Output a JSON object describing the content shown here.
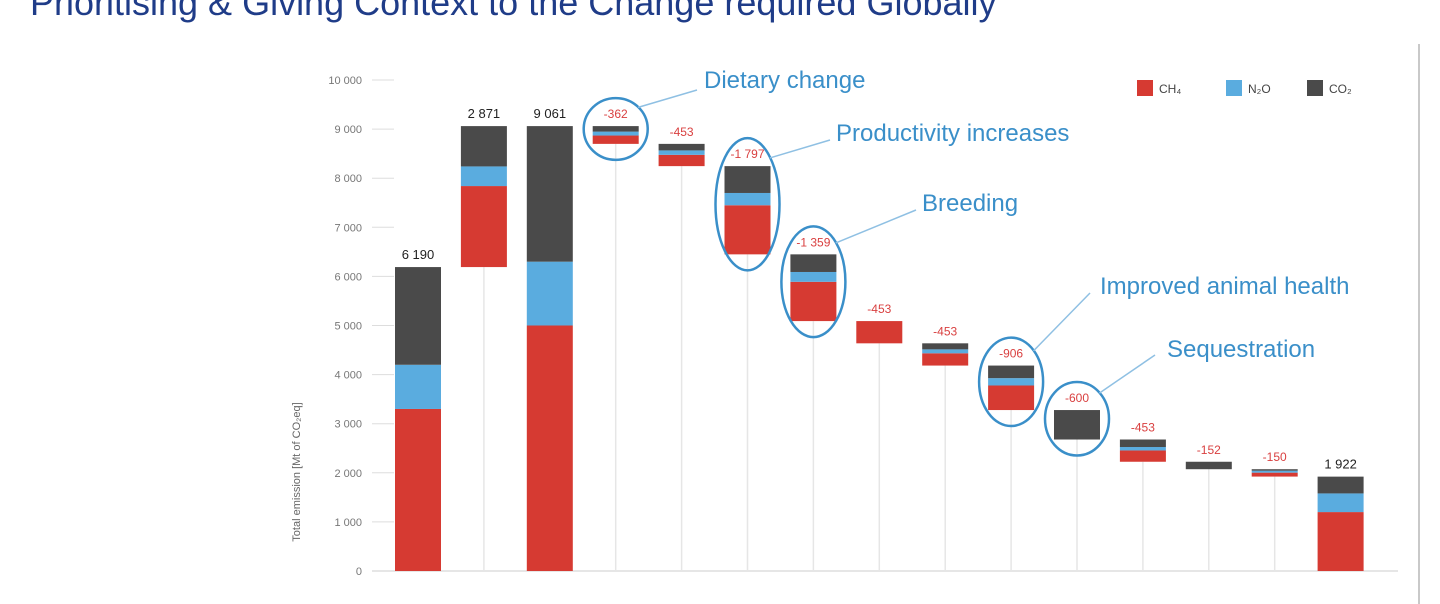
{
  "page": {
    "title": "Prioritising & Giving Context to the Change required Globally"
  },
  "chart_data": {
    "type": "bar",
    "subtype": "waterfall-stacked",
    "ylabel": "Total emission [Mt of CO₂eq]",
    "ylim": [
      0,
      10000
    ],
    "yticks": [
      0,
      1000,
      2000,
      3000,
      4000,
      5000,
      6000,
      7000,
      8000,
      9000,
      10000
    ],
    "ytick_labels": [
      "0",
      "1 000",
      "2 000",
      "3 000",
      "4 000",
      "5 000",
      "6 000",
      "7 000",
      "8 000",
      "9 000",
      "10 000"
    ],
    "grid": false,
    "legend_position": "top-right",
    "legend": [
      {
        "name": "CH₄",
        "color": "#d63a32"
      },
      {
        "name": "N₂O",
        "color": "#5aacdf"
      },
      {
        "name": "CO₂",
        "color": "#4a4a4a"
      }
    ],
    "bars": [
      {
        "kind": "total",
        "label": "6 190",
        "bottom": 0,
        "segments": [
          3300,
          900,
          1990
        ]
      },
      {
        "kind": "increase",
        "label": "2 871",
        "bottom": 6190,
        "segments": [
          1650,
          400,
          821
        ]
      },
      {
        "kind": "total",
        "label": "9 061",
        "bottom": 0,
        "segments": [
          5000,
          1300,
          2761
        ]
      },
      {
        "kind": "decrease",
        "label": "-362",
        "bottom": 8699,
        "segments": [
          170,
          80,
          112
        ]
      },
      {
        "kind": "decrease",
        "label": "-453",
        "bottom": 8246,
        "segments": [
          230,
          90,
          133
        ]
      },
      {
        "kind": "decrease",
        "label": "-1 797",
        "bottom": 6449,
        "segments": [
          1000,
          250,
          547
        ]
      },
      {
        "kind": "decrease",
        "label": "-1 359",
        "bottom": 5090,
        "segments": [
          800,
          200,
          359
        ]
      },
      {
        "kind": "decrease",
        "label": "-453",
        "bottom": 4637,
        "segments": [
          453,
          0,
          0
        ]
      },
      {
        "kind": "decrease",
        "label": "-453",
        "bottom": 4184,
        "segments": [
          250,
          80,
          123
        ]
      },
      {
        "kind": "decrease",
        "label": "-906",
        "bottom": 3278,
        "segments": [
          500,
          150,
          256
        ]
      },
      {
        "kind": "decrease",
        "label": "-600",
        "bottom": 2678,
        "segments": [
          0,
          0,
          600
        ]
      },
      {
        "kind": "decrease",
        "label": "-453",
        "bottom": 2225,
        "segments": [
          230,
          70,
          153
        ]
      },
      {
        "kind": "decrease",
        "label": "-152",
        "bottom": 2073,
        "segments": [
          0,
          0,
          152
        ]
      },
      {
        "kind": "decrease",
        "label": "-150",
        "bottom": 1923,
        "segments": [
          80,
          40,
          30
        ]
      },
      {
        "kind": "total",
        "label": "1 922",
        "bottom": 0,
        "segments": [
          1200,
          380,
          342
        ]
      }
    ],
    "annotations": [
      {
        "text": "Dietary change",
        "bar_index": 3
      },
      {
        "text": "Productivity increases",
        "bar_index": 5
      },
      {
        "text": "Breeding",
        "bar_index": 6
      },
      {
        "text": "Improved animal health",
        "bar_index": 9
      },
      {
        "text": "Sequestration",
        "bar_index": 10
      }
    ]
  }
}
